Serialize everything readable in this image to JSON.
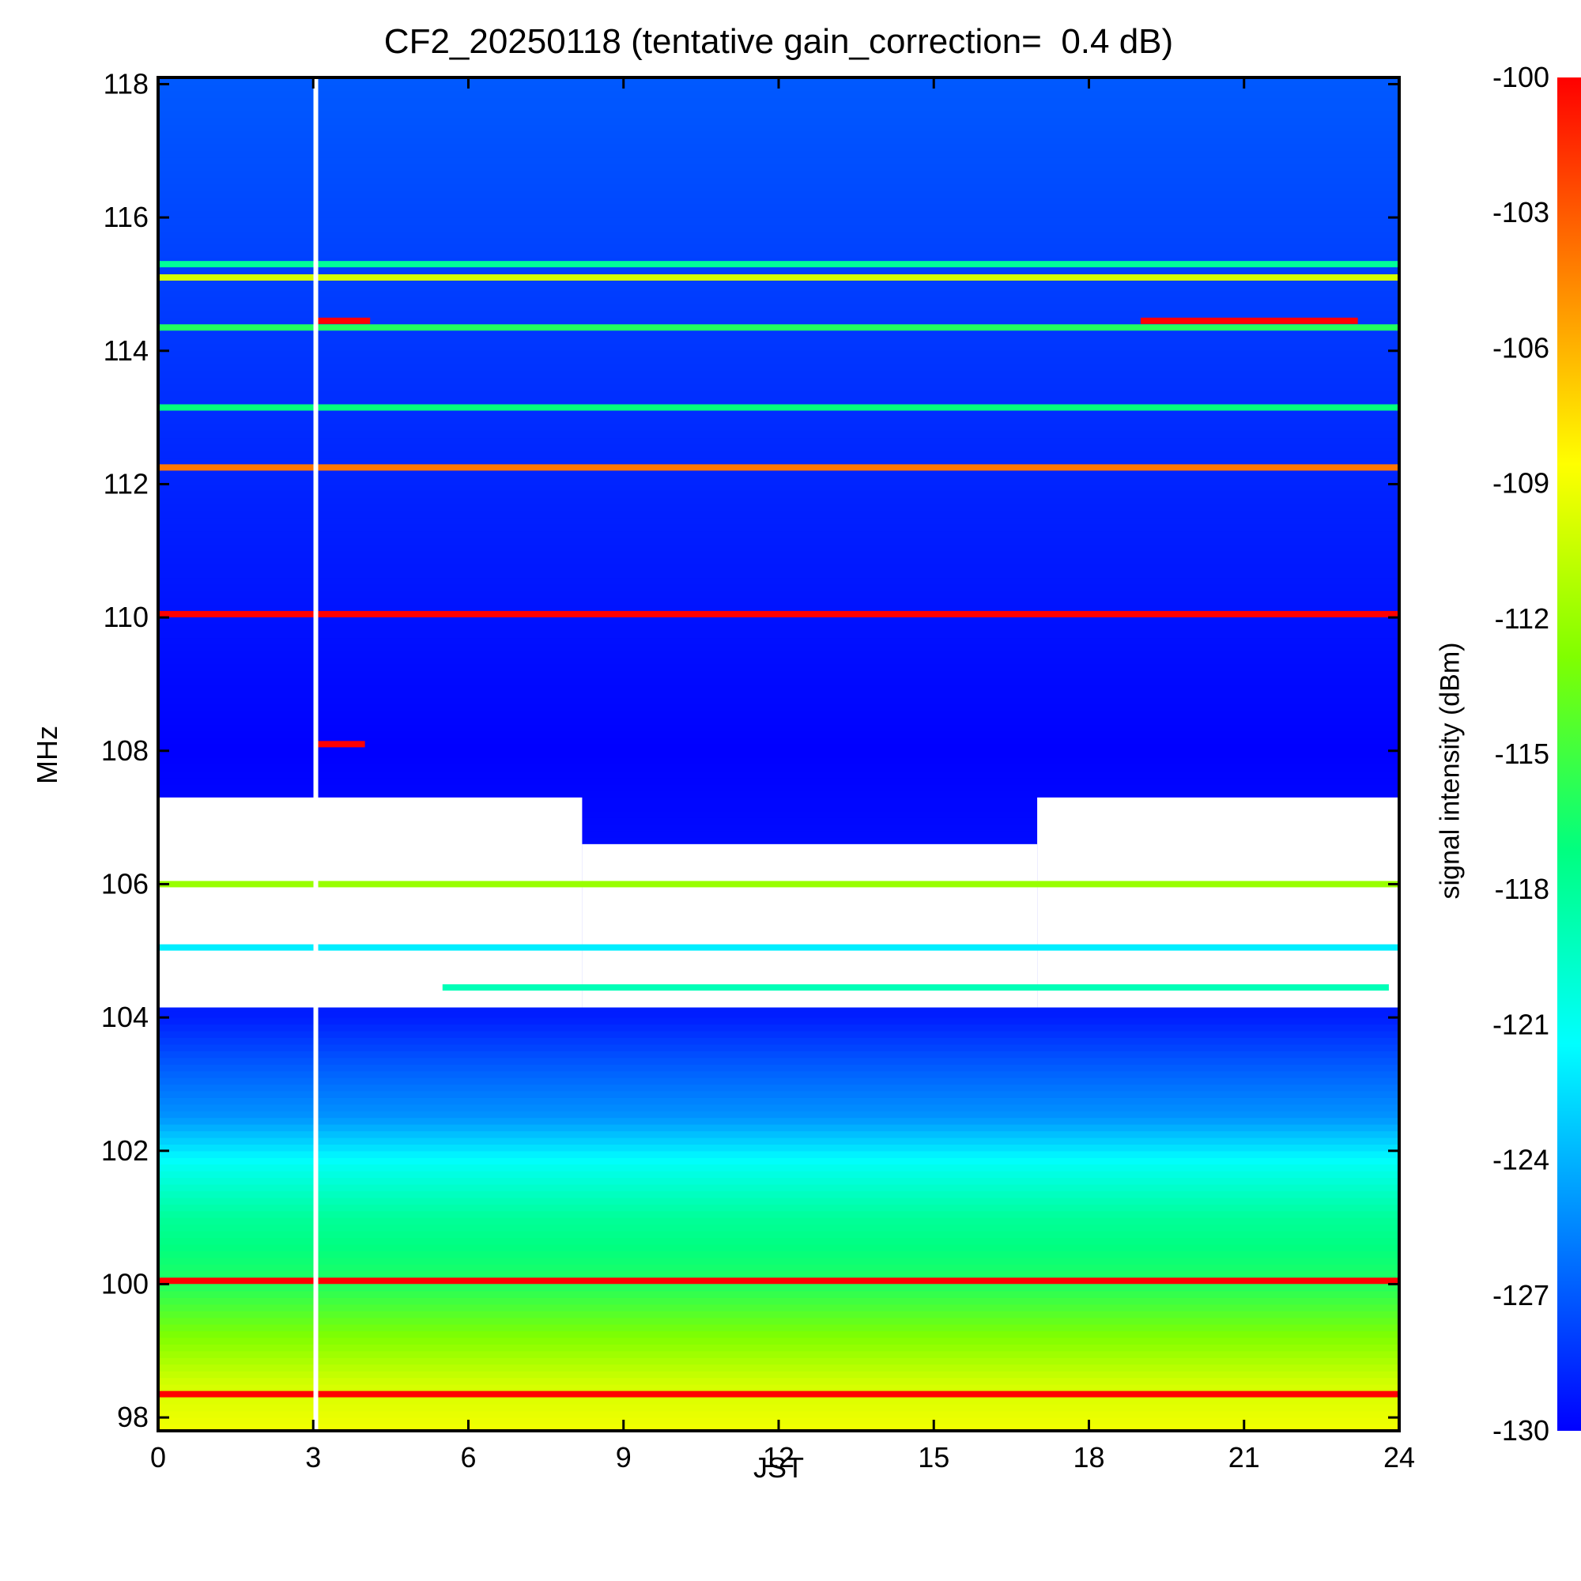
{
  "chart_data": {
    "type": "heatmap",
    "title": "CF2_20250118 (tentative gain_correction=  0.4 dB)",
    "xlabel": "JST",
    "ylabel": "MHz",
    "colorbar_label": "signal intensity (dBm)",
    "xlim": [
      0,
      24
    ],
    "ylim": [
      97.8,
      118.1
    ],
    "zlim": [
      -130,
      -100
    ],
    "x_ticks": [
      0,
      3,
      6,
      9,
      12,
      15,
      18,
      21,
      24
    ],
    "y_ticks": [
      98,
      100,
      102,
      104,
      106,
      108,
      110,
      112,
      114,
      116,
      118
    ],
    "colorbar_ticks": [
      -100,
      -103,
      -106,
      -109,
      -112,
      -115,
      -118,
      -121,
      -124,
      -127,
      -130
    ],
    "colormap": [
      "#0000ff",
      "#0080ff",
      "#00ffff",
      "#00ff80",
      "#80ff00",
      "#ffff00",
      "#ff8000",
      "#ff0000"
    ],
    "missing_value_color": "#ffffff",
    "gap_times": [
      3.05
    ],
    "background_profile": [
      {
        "mhz": 97.8,
        "dbm": -109
      },
      {
        "mhz": 98.5,
        "dbm": -110
      },
      {
        "mhz": 99.0,
        "dbm": -112
      },
      {
        "mhz": 100.0,
        "dbm": -116
      },
      {
        "mhz": 101.0,
        "dbm": -118
      },
      {
        "mhz": 101.8,
        "dbm": -121
      },
      {
        "mhz": 102.5,
        "dbm": -125
      },
      {
        "mhz": 103.3,
        "dbm": -127
      },
      {
        "mhz": 104.0,
        "dbm": -129
      },
      {
        "mhz": 108.0,
        "dbm": -130
      },
      {
        "mhz": 118.1,
        "dbm": -127
      }
    ],
    "missing_regions": [
      {
        "f_from": 104.15,
        "f_to": 107.3,
        "t_from": 0,
        "t_to": 8.2
      },
      {
        "f_from": 104.15,
        "f_to": 106.6,
        "t_from": 8.2,
        "t_to": 17.0
      },
      {
        "f_from": 104.15,
        "f_to": 107.3,
        "t_from": 17.0,
        "t_to": 24
      }
    ],
    "carriers": [
      {
        "mhz": 98.35,
        "t_from": 0,
        "t_to": 24,
        "dbm": -100
      },
      {
        "mhz": 100.05,
        "t_from": 0,
        "t_to": 24,
        "dbm": -100
      },
      {
        "mhz": 104.45,
        "t_from": 5.5,
        "t_to": 23.8,
        "dbm": -119
      },
      {
        "mhz": 105.05,
        "t_from": 0,
        "t_to": 24,
        "dbm": -122
      },
      {
        "mhz": 106.0,
        "t_from": 0,
        "t_to": 24,
        "dbm": -112
      },
      {
        "mhz": 108.1,
        "t_from": 3.05,
        "t_to": 4.0,
        "dbm": -100
      },
      {
        "mhz": 110.05,
        "t_from": 0,
        "t_to": 24,
        "dbm": -100
      },
      {
        "mhz": 112.25,
        "t_from": 0,
        "t_to": 24,
        "dbm": -104
      },
      {
        "mhz": 113.15,
        "t_from": 0,
        "t_to": 24,
        "dbm": -117
      },
      {
        "mhz": 114.45,
        "t_from": 3.05,
        "t_to": 4.1,
        "dbm": -100
      },
      {
        "mhz": 114.45,
        "t_from": 19.0,
        "t_to": 23.2,
        "dbm": -100
      },
      {
        "mhz": 114.35,
        "t_from": 0,
        "t_to": 24,
        "dbm": -116
      },
      {
        "mhz": 115.1,
        "t_from": 0,
        "t_to": 24,
        "dbm": -110
      },
      {
        "mhz": 115.3,
        "t_from": 0,
        "t_to": 24,
        "dbm": -118
      }
    ]
  }
}
